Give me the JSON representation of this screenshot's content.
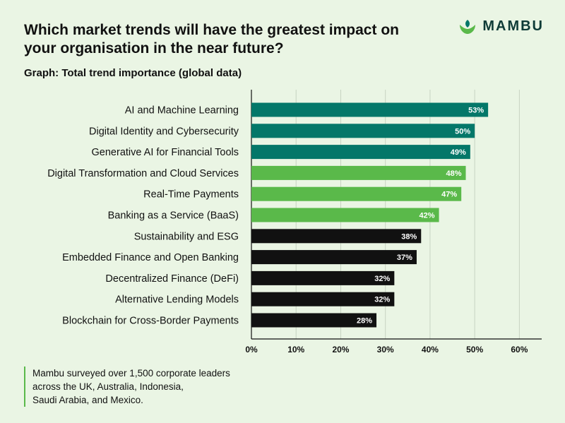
{
  "header": {
    "title": "Which market trends will have the greatest impact on your organisation in the near future?",
    "subtitle": "Graph: Total trend importance (global data)",
    "logo_text": "MAMBU"
  },
  "colors": {
    "background": "#eaf5e4",
    "teal": "#047769",
    "green": "#5ab94a",
    "black": "#111111",
    "grid": "#c7d3c2"
  },
  "chart_data": {
    "type": "bar",
    "orientation": "horizontal",
    "title": "Which market trends will have the greatest impact on your organisation in the near future?",
    "subtitle": "Graph: Total trend importance (global data)",
    "categories": [
      "AI and Machine Learning",
      "Digital Identity and Cybersecurity",
      "Generative AI for Financial Tools",
      "Digital Transformation and Cloud Services",
      "Real-Time Payments",
      "Banking as a Service (BaaS)",
      "Sustainability and ESG",
      "Embedded Finance and Open Banking",
      "Decentralized Finance (DeFi)",
      "Alternative Lending Models",
      "Blockchain for Cross-Border Payments"
    ],
    "values": [
      53,
      50,
      49,
      48,
      47,
      42,
      38,
      37,
      32,
      32,
      28
    ],
    "value_labels": [
      "53%",
      "50%",
      "49%",
      "48%",
      "47%",
      "42%",
      "38%",
      "37%",
      "32%",
      "32%",
      "28%"
    ],
    "bar_color_groups": [
      "teal",
      "teal",
      "teal",
      "green",
      "green",
      "green",
      "black",
      "black",
      "black",
      "black",
      "black"
    ],
    "xlim": [
      0,
      65
    ],
    "xticks": [
      0,
      10,
      20,
      30,
      40,
      50,
      60
    ],
    "xtick_labels": [
      "0%",
      "10%",
      "20%",
      "30%",
      "40%",
      "50%",
      "60%"
    ],
    "xlabel": "",
    "ylabel": "",
    "grid": true
  },
  "footnote": {
    "lines": [
      "Mambu surveyed over 1,500 corporate leaders",
      "across the UK, Australia, Indonesia,",
      "Saudi Arabia, and Mexico."
    ]
  }
}
